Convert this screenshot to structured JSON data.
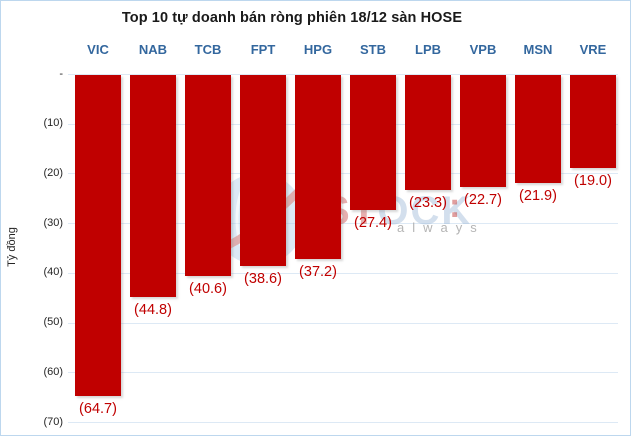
{
  "chart_data": {
    "type": "bar",
    "title": "Top 10 tự doanh bán ròng phiên 18/12 sàn HOSE",
    "xlabel": "",
    "ylabel": "Tỷ đồng",
    "categories": [
      "VIC",
      "NAB",
      "TCB",
      "FPT",
      "HPG",
      "STB",
      "LPB",
      "VPB",
      "MSN",
      "VRE"
    ],
    "values": [
      -64.7,
      -44.8,
      -40.6,
      -38.6,
      -37.2,
      -27.4,
      -23.3,
      -22.7,
      -21.9,
      -19.0
    ],
    "value_labels": [
      "(64.7)",
      "(44.8)",
      "(40.6)",
      "(38.6)",
      "(37.2)",
      "(27.4)",
      "(23.3)",
      "(22.7)",
      "(21.9)",
      "(19.0)"
    ],
    "ylim": [
      -70,
      0
    ],
    "y_ticks": {
      "values": [
        0,
        -10,
        -20,
        -30,
        -40,
        -50,
        -60,
        -70
      ],
      "labels": [
        "-",
        "(10)",
        "(20)",
        "(30)",
        "(40)",
        "(50)",
        "(60)",
        "(70)"
      ]
    },
    "grid": true,
    "legend": "none",
    "orientation": "vertical-negative"
  },
  "colors": {
    "bar": "#C00000",
    "value_label": "#C00000",
    "category_label": "#33679E",
    "gridline": "#DDE9F5",
    "border": "#BDD7EE",
    "title": "#1A1A1A",
    "tick_label": "#262626"
  },
  "watermark": {
    "letters_red": "ST",
    "letters_blue": "OCK",
    "colon": ":",
    "small_letter": "f",
    "slogan": "always"
  }
}
